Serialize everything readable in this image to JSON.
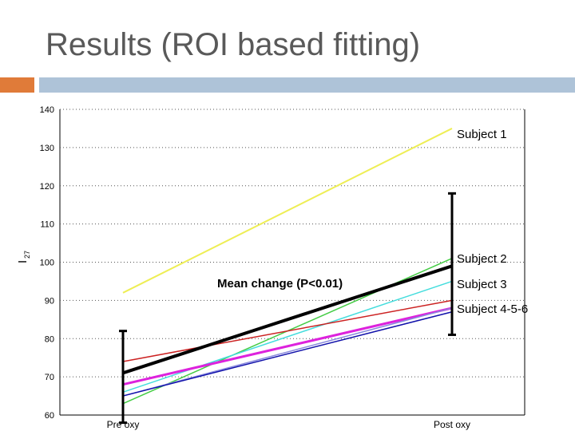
{
  "slide": {
    "title": "Results (ROI based fitting)",
    "colors": {
      "accent_block": "#e07b39",
      "accent_bar": "#aec3d8"
    }
  },
  "chart_data": {
    "type": "line",
    "categories": [
      "Pre oxy",
      "Post oxy"
    ],
    "ylabel": "I",
    "ylabel_subscript": "27",
    "ylim": [
      60,
      140
    ],
    "yticks": [
      140,
      130,
      120,
      110,
      100,
      90,
      80,
      70,
      60
    ],
    "grid": "horizontal dotted",
    "series": [
      {
        "values": [
          92,
          135
        ],
        "color": "#eeee55",
        "width": 2
      },
      {
        "values": [
          63,
          101
        ],
        "color": "#44cc44",
        "width": 1.5
      },
      {
        "values": [
          66,
          95
        ],
        "color": "#44dddd",
        "width": 1.5
      },
      {
        "values": [
          74,
          90
        ],
        "color": "#cc2222",
        "width": 1.5
      },
      {
        "values": [
          68,
          88
        ],
        "color": "#dd22dd",
        "width": 3
      },
      {
        "values": [
          65,
          88
        ],
        "color": "#8888dd",
        "width": 1.5
      },
      {
        "values": [
          65,
          87
        ],
        "color": "#1111aa",
        "width": 1.5
      },
      {
        "values": [
          71,
          99
        ],
        "color": "#000000",
        "width": 4
      }
    ],
    "error_bars": [
      {
        "category": "Pre oxy",
        "low": 58,
        "high": 82
      },
      {
        "category": "Post oxy",
        "low": 81,
        "high": 118
      }
    ],
    "annotations": {
      "subject_1": "Subject 1",
      "subject_2": "Subject 2",
      "subject_3": "Subject 3",
      "subject_456": "Subject 4-5-6",
      "mean_change": "Mean change (P<0.01)"
    }
  }
}
